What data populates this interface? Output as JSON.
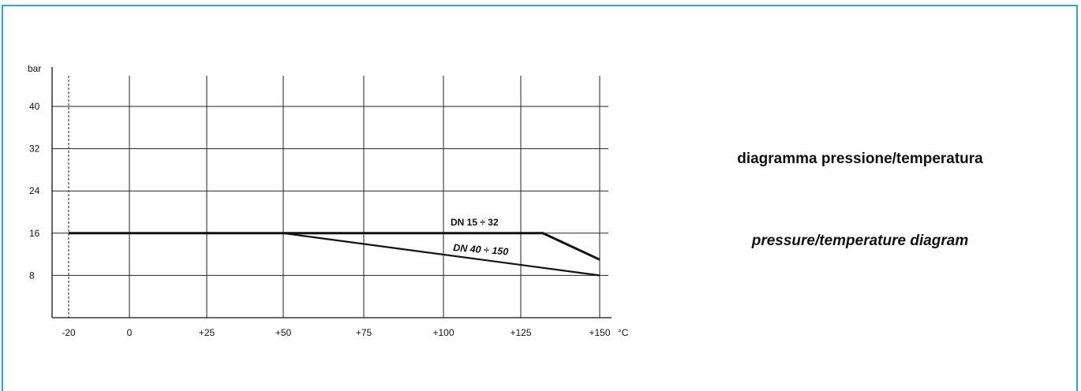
{
  "titles": {
    "italian": "diagramma pressione/temperatura",
    "english": "pressure/temperature diagram"
  },
  "colors": {
    "frame": "#29a8e0",
    "lines": "#111111",
    "grid": "#222222"
  },
  "chart_data": {
    "type": "line",
    "title": "",
    "xlabel": "°C",
    "ylabel": "bar",
    "x_ticks": [
      -20,
      0,
      25,
      50,
      75,
      100,
      125,
      150
    ],
    "x_tick_labels": [
      "-20",
      "0",
      "+25",
      "+50",
      "+75",
      "+100",
      "+125",
      "+150"
    ],
    "y_ticks": [
      8,
      16,
      24,
      32,
      40
    ],
    "y_tick_labels": [
      "8",
      "16",
      "24",
      "32",
      "40"
    ],
    "xlim": [
      -25,
      153
    ],
    "ylim": [
      0,
      46
    ],
    "grid": true,
    "series": [
      {
        "name": "DN 15 ÷ 32",
        "x": [
          -20,
          50,
          132,
          150
        ],
        "y": [
          16,
          16,
          16,
          11
        ]
      },
      {
        "name": "DN 40 ÷ 150",
        "x": [
          50,
          150
        ],
        "y": [
          16,
          8
        ]
      }
    ]
  }
}
